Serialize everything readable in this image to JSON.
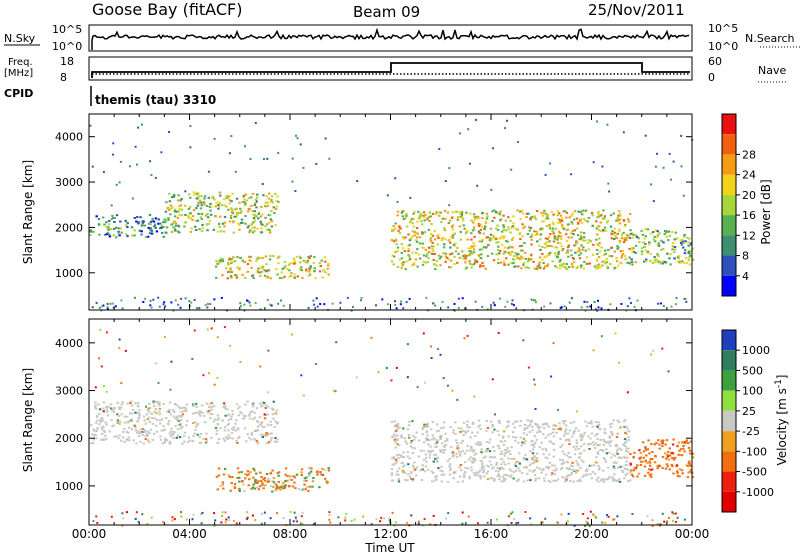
{
  "header": {
    "station": "Goose Bay (fitACF)",
    "beam": "Beam 09",
    "date": "25/Nov/2011"
  },
  "panels": {
    "nsky": {
      "label": "N.Sky",
      "top_tick": "10^5",
      "bottom_tick": "10^0"
    },
    "nsearch": {
      "label": "N.Search",
      "top_tick": "10^5",
      "bottom_tick": "10^0"
    },
    "freq": {
      "label_line1": "Freq.",
      "label_line2": "[MHz]",
      "top_tick": "18",
      "bottom_tick": "8"
    },
    "nave": {
      "label": "Nave",
      "top_tick": "60",
      "bottom_tick": "0"
    },
    "cpid": {
      "label": "CPID",
      "value": "themis (tau) 3310"
    }
  },
  "colors": {
    "power_scale": [
      "#0000ff",
      "#2f4fbf",
      "#3c8f6f",
      "#58b050",
      "#a6d63a",
      "#f2d21b",
      "#f59c14",
      "#f06010",
      "#e81010"
    ],
    "velocity_scale": [
      "#1f3fbf",
      "#2f7f5f",
      "#3fa03f",
      "#8fdf3f",
      "#c8c8c4",
      "#f0a020",
      "#f07010",
      "#f02010",
      "#e00000"
    ],
    "ground_scatter": "#c8c8c4"
  },
  "chart_data": [
    {
      "type": "heatmap",
      "title": "Power",
      "ylabel": "Slant Range [km]",
      "xlabel": "Time UT",
      "xlim": [
        "00:00",
        "24:00"
      ],
      "ylim": [
        180,
        4500
      ],
      "x_ticks": [
        "00:00",
        "04:00",
        "08:00",
        "12:00",
        "16:00",
        "20:00",
        "00:00"
      ],
      "y_ticks": [
        1000,
        2000,
        3000,
        4000
      ],
      "colorbar": {
        "label": "Power [dB]",
        "ticks": [
          4,
          8,
          12,
          16,
          20,
          24,
          28
        ]
      },
      "echo_bands": [
        {
          "t_start": 0.0,
          "t_end": 3.0,
          "range_start": 1800,
          "range_end": 2300,
          "power": 10
        },
        {
          "t_start": 3.0,
          "t_end": 7.5,
          "range_start": 1900,
          "range_end": 2800,
          "power": 16
        },
        {
          "t_start": 5.0,
          "t_end": 9.5,
          "range_start": 900,
          "range_end": 1400,
          "power": 18
        },
        {
          "t_start": 12.0,
          "t_end": 21.5,
          "range_start": 1100,
          "range_end": 2400,
          "power": 18
        },
        {
          "t_start": 21.5,
          "t_end": 24.0,
          "range_start": 1200,
          "range_end": 2000,
          "power": 14
        }
      ]
    },
    {
      "type": "heatmap",
      "title": "Velocity",
      "ylabel": "Slant Range [km]",
      "xlabel": "Time UT",
      "xlim": [
        "00:00",
        "24:00"
      ],
      "ylim": [
        180,
        4500
      ],
      "x_ticks": [
        "00:00",
        "04:00",
        "08:00",
        "12:00",
        "16:00",
        "20:00",
        "00:00"
      ],
      "y_ticks": [
        1000,
        2000,
        3000,
        4000
      ],
      "colorbar": {
        "label": "Velocity [m s-1]",
        "ticks": [
          1000,
          500,
          100,
          25,
          -25,
          -100,
          -500,
          -1000
        ]
      },
      "echo_bands": [
        {
          "t_start": 0.0,
          "t_end": 7.5,
          "range_start": 1900,
          "range_end": 2800,
          "velocity": 0,
          "ground_scatter": true
        },
        {
          "t_start": 5.0,
          "t_end": 9.5,
          "range_start": 900,
          "range_end": 1400,
          "velocity": -150
        },
        {
          "t_start": 12.0,
          "t_end": 21.5,
          "range_start": 1100,
          "range_end": 2400,
          "velocity": 0,
          "ground_scatter": true
        },
        {
          "t_start": 21.5,
          "t_end": 24.0,
          "range_start": 1200,
          "range_end": 2000,
          "velocity": -300
        }
      ]
    }
  ]
}
